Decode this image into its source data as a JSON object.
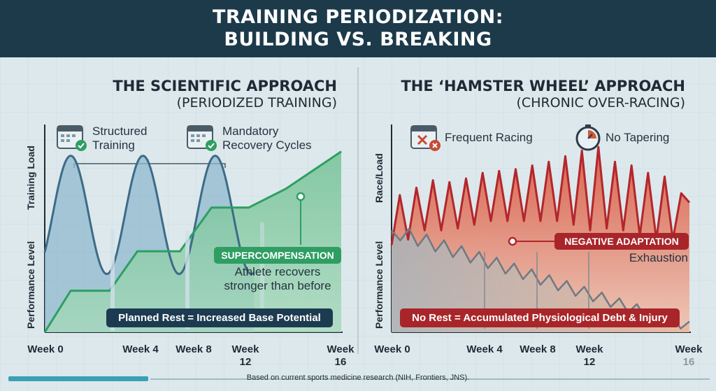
{
  "header": {
    "title_line1": "TRAINING PERIODIZATION:",
    "title_line2": "BUILDING VS. BREAKING"
  },
  "colors": {
    "banner": "#1c3a4a",
    "blue_fill": "#8fb9cd",
    "blue_line": "#3d6b88",
    "green": "#2e9e63",
    "green_fill": "#8fcca8",
    "red": "#b3262b",
    "red_fill": "#e58a78",
    "gray_line": "#6d7a83"
  },
  "left": {
    "title": "THE SCIENTIFIC APPROACH",
    "subtitle": "(PERIODIZED TRAINING)",
    "feature1": {
      "icon": "calendar-check-icon",
      "line1": "Structured",
      "line2": "Training"
    },
    "feature2": {
      "icon": "calendar-check-icon",
      "line1": "Mandatory",
      "line2": "Recovery Cycles"
    },
    "ylabel_top": "Training Load",
    "ylabel_bottom": "Performance Level",
    "callout_title": "SUPERCOMPENSATION",
    "callout_line1": "Athlete recovers",
    "callout_line2": "stronger than before",
    "banner": "Planned Rest = Increased Base Potential",
    "weeks": {
      "w0": "Week 0",
      "w4": "Week 4",
      "w8": "Week 8",
      "w12a": "Week",
      "w12b": "12",
      "w16a": "Week",
      "w16b": "16"
    }
  },
  "right": {
    "title": "THE ‘HAMSTER WHEEL’ APPROACH",
    "subtitle": "(CHRONIC OVER-RACING)",
    "feature1": {
      "icon": "calendar-x-icon",
      "label": "Frequent Racing"
    },
    "feature2": {
      "icon": "stopwatch-icon",
      "label": "No Tapering"
    },
    "ylabel_top": "Race/Load",
    "ylabel_bottom": "Performance Level",
    "callout_title": "NEGATIVE ADAPTATION",
    "callout_line1": "Exhaustion",
    "banner": "No Rest = Accumulated Physiological Debt & Injury",
    "weeks": {
      "w0": "Week 0",
      "w4": "Week 4",
      "w8": "Week 8",
      "w12a": "Week",
      "w12b": "12",
      "w16a": "Week",
      "w16b": "16"
    }
  },
  "footer": {
    "text": "Based on current sports medicine research (NIH, Frontiers, JNS)."
  },
  "chart_data": [
    {
      "type": "area",
      "title": "THE SCIENTIFIC APPROACH",
      "x": [
        0,
        4,
        8,
        12,
        16
      ],
      "series": [
        {
          "name": "Training Load",
          "shape": "sine",
          "peaks_at_week": [
            1.4,
            5.3,
            9.0
          ],
          "min_level": 0.28,
          "max_level": 0.85
        },
        {
          "name": "Performance Level",
          "points": [
            [
              0,
              0.0
            ],
            [
              1.4,
              0.2
            ],
            [
              3.5,
              0.2
            ],
            [
              5.0,
              0.39
            ],
            [
              7.3,
              0.39
            ],
            [
              9.0,
              0.6
            ],
            [
              11.0,
              0.6
            ],
            [
              13.0,
              0.69
            ],
            [
              16.0,
              0.87
            ]
          ]
        }
      ],
      "annotations": [
        "SUPERCOMPENSATION",
        "Planned Rest = Increased Base Potential"
      ]
    },
    {
      "type": "area",
      "title": "THE ‘HAMSTER WHEEL’ APPROACH",
      "x": [
        0,
        4,
        8,
        12,
        16
      ],
      "series": [
        {
          "name": "Race/Load",
          "peaks": [
            0.74,
            0.78,
            0.82,
            0.81,
            0.83,
            0.86,
            0.87,
            0.88,
            0.9,
            0.92,
            0.95,
            0.98,
            1.0,
            0.92,
            0.9,
            0.86,
            0.84,
            0.75
          ],
          "troughs": [
            0.5,
            0.55,
            0.55,
            0.56,
            0.58,
            0.6,
            0.6,
            0.6,
            0.6,
            0.6,
            0.58,
            0.55,
            0.56,
            0.55,
            0.52,
            0.5,
            0.5
          ]
        },
        {
          "name": "Performance Level",
          "trend_start": 0.55,
          "trend_end": 0.03,
          "oscillation": "jagged decline"
        }
      ],
      "annotations": [
        "NEGATIVE ADAPTATION",
        "Exhaustion",
        "No Rest = Accumulated Physiological Debt & Injury"
      ]
    }
  ]
}
